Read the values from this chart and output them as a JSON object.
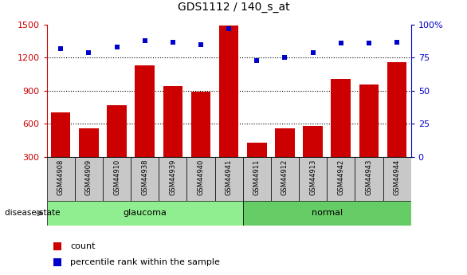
{
  "title": "GDS1112 / 140_s_at",
  "samples": [
    "GSM44908",
    "GSM44909",
    "GSM44910",
    "GSM44938",
    "GSM44939",
    "GSM44940",
    "GSM44941",
    "GSM44911",
    "GSM44912",
    "GSM44913",
    "GSM44942",
    "GSM44943",
    "GSM44944"
  ],
  "counts": [
    700,
    560,
    770,
    1130,
    940,
    890,
    1490,
    430,
    560,
    580,
    1010,
    960,
    1160
  ],
  "percentiles": [
    82,
    79,
    83,
    88,
    87,
    85,
    97,
    73,
    75,
    79,
    86,
    86,
    87
  ],
  "groups": [
    "glaucoma",
    "glaucoma",
    "glaucoma",
    "glaucoma",
    "glaucoma",
    "glaucoma",
    "glaucoma",
    "normal",
    "normal",
    "normal",
    "normal",
    "normal",
    "normal"
  ],
  "ylim_left": [
    300,
    1500
  ],
  "ylim_right": [
    0,
    100
  ],
  "yticks_left": [
    300,
    600,
    900,
    1200,
    1500
  ],
  "yticks_right": [
    0,
    25,
    50,
    75,
    100
  ],
  "bar_color": "#CC0000",
  "dot_color": "#0000CC",
  "glaucoma_color": "#90EE90",
  "normal_color": "#66CC66",
  "label_bg_color": "#C8C8C8",
  "grid_color": "#000000",
  "left_axis_color": "#CC0000",
  "right_axis_color": "#0000CC",
  "n_glaucoma": 7,
  "bar_width": 0.7
}
